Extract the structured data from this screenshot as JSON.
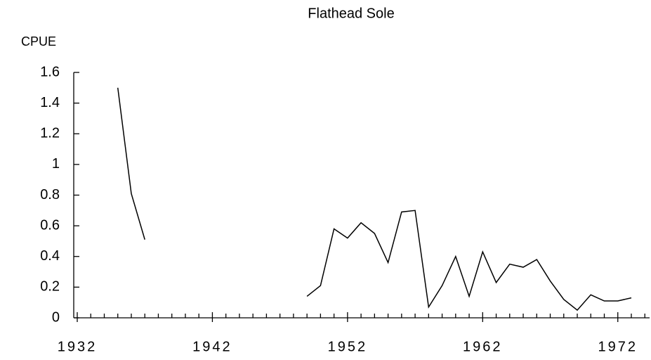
{
  "chart_data": {
    "type": "line",
    "title": "Flathead Sole",
    "y_label": "CPUE",
    "x": [
      1935,
      1936,
      1937,
      1938,
      1939,
      1940,
      1941,
      1942,
      1943,
      1944,
      1945,
      1946,
      1947,
      1948,
      1949,
      1950,
      1951,
      1952,
      1953,
      1954,
      1955,
      1956,
      1957,
      1958,
      1959,
      1960,
      1961,
      1962,
      1963,
      1964,
      1965,
      1966,
      1967,
      1968,
      1969,
      1970,
      1971,
      1972,
      1973
    ],
    "series": [
      {
        "name": "CPUE",
        "color": "#000000",
        "values": [
          1.5,
          0.81,
          0.51,
          null,
          null,
          null,
          null,
          null,
          null,
          null,
          null,
          null,
          null,
          null,
          0.14,
          0.21,
          0.58,
          0.52,
          0.62,
          0.55,
          0.36,
          0.69,
          0.7,
          0.07,
          0.21,
          0.4,
          0.14,
          0.43,
          0.23,
          0.35,
          0.33,
          0.38,
          0.24,
          0.12,
          0.05,
          0.15,
          0.11,
          0.11,
          0.13
        ]
      }
    ],
    "xlim": [
      1932,
      1974.3
    ],
    "xticks": [
      1932,
      1942,
      1952,
      1962,
      1972
    ],
    "xminor_ticks": [
      1933,
      1934,
      1935,
      1936,
      1937,
      1938,
      1939,
      1940,
      1941,
      1943,
      1944,
      1945,
      1946,
      1947,
      1948,
      1949,
      1950,
      1951,
      1953,
      1954,
      1955,
      1956,
      1957,
      1958,
      1959,
      1960,
      1961,
      1963,
      1964,
      1965,
      1966,
      1967,
      1968,
      1969,
      1970,
      1971,
      1973,
      1974
    ],
    "ylim": [
      0,
      1.6
    ],
    "yticks": [
      0,
      0.2,
      0.4,
      0.6,
      0.8,
      1,
      1.2,
      1.4,
      1.6
    ],
    "grid": false
  }
}
